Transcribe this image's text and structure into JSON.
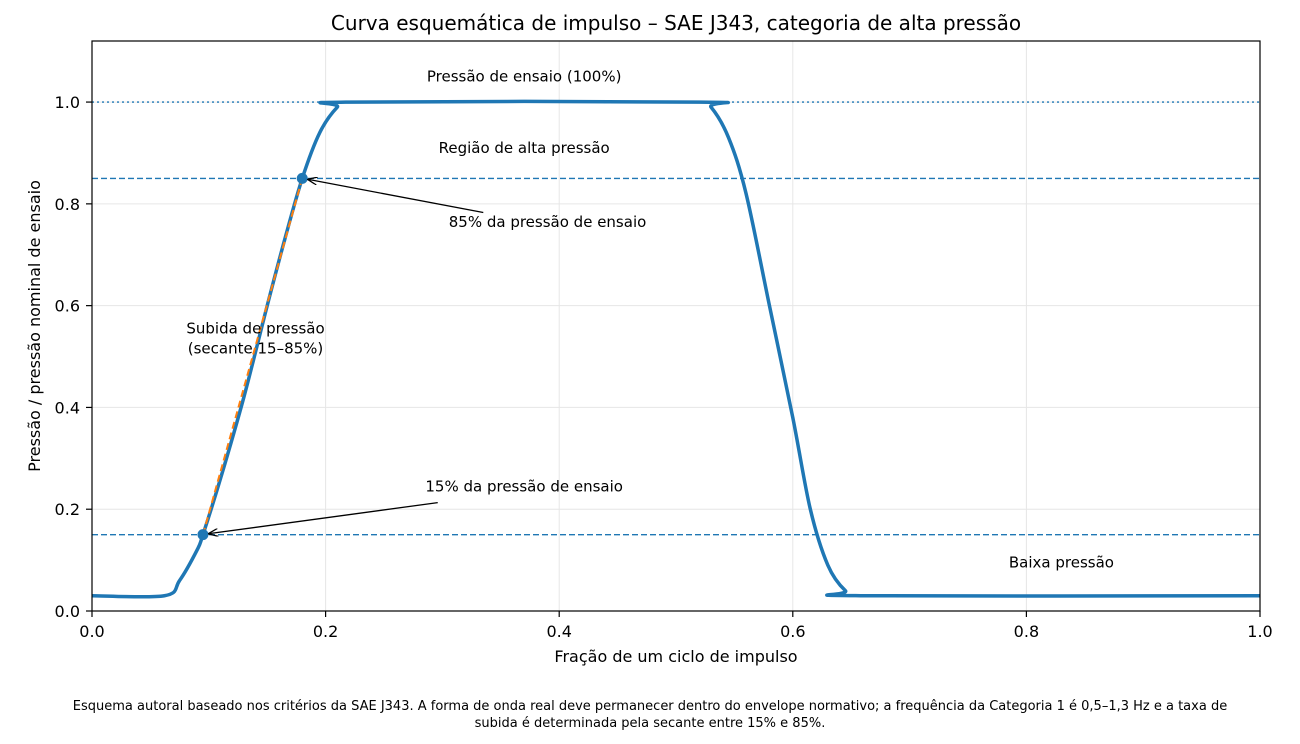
{
  "chart_data": {
    "type": "line",
    "title": "Curva esquemática de impulso – SAE J343, categoria de alta pressão",
    "xlabel": "Fração de um ciclo de impulso",
    "ylabel": "Pressão / pressão nominal de ensaio",
    "xlim": [
      0,
      1
    ],
    "ylim": [
      0,
      1.12
    ],
    "x_ticks": [
      "0.0",
      "0.2",
      "0.4",
      "0.6",
      "0.8",
      "1.0"
    ],
    "y_ticks": [
      "0.0",
      "0.2",
      "0.4",
      "0.6",
      "0.8",
      "1.0"
    ],
    "grid": true,
    "series": [
      {
        "kind": "pressure-curve",
        "color": "#1f77b4",
        "x": [
          0.0,
          0.062,
          0.075,
          0.09,
          0.095,
          0.11,
          0.13,
          0.15,
          0.165,
          0.18,
          0.195,
          0.21,
          0.22,
          0.52,
          0.53,
          0.545,
          0.56,
          0.58,
          0.6,
          0.615,
          0.63,
          0.645,
          0.658,
          1.0
        ],
        "y": [
          0.03,
          0.03,
          0.06,
          0.12,
          0.15,
          0.26,
          0.42,
          0.6,
          0.73,
          0.85,
          0.94,
          0.99,
          1.0,
          1.0,
          0.99,
          0.93,
          0.82,
          0.6,
          0.38,
          0.2,
          0.09,
          0.04,
          0.03,
          0.03
        ]
      },
      {
        "kind": "secant-line",
        "color": "#ff7f0e",
        "x": [
          0.095,
          0.18
        ],
        "y": [
          0.15,
          0.85
        ]
      }
    ],
    "reference_lines": [
      {
        "y": 1.0,
        "style": "dotted",
        "color": "#1f77b4"
      },
      {
        "y": 0.85,
        "style": "dashed",
        "color": "#1f77b4"
      },
      {
        "y": 0.15,
        "style": "dashed",
        "color": "#1f77b4"
      }
    ],
    "markers": [
      {
        "x": 0.095,
        "y": 0.15,
        "color": "#1f77b4"
      },
      {
        "x": 0.18,
        "y": 0.85,
        "color": "#1f77b4"
      }
    ],
    "annotations": {
      "test_pressure": {
        "text": "Pressão de ensaio (100%)",
        "x": 0.37,
        "y": 1.04
      },
      "high_region": {
        "text": "Região de alta pressão",
        "x": 0.37,
        "y": 0.9
      },
      "p85": {
        "text": "85% da pressão de ensaio",
        "x": 0.39,
        "y": 0.755,
        "arrow_to": [
          0.18,
          0.85
        ]
      },
      "rise": {
        "lines": [
          "Subida de pressão",
          "(secante 15–85%)"
        ],
        "x": 0.14,
        "y": 0.545
      },
      "p15": {
        "text": "15% da pressão de ensaio",
        "x": 0.37,
        "y": 0.235,
        "arrow_to": [
          0.095,
          0.15
        ]
      },
      "low": {
        "text": "Baixa pressão",
        "x": 0.83,
        "y": 0.085
      }
    },
    "caption_lines": [
      "Esquema autoral baseado nos critérios da SAE J343. A forma de onda real deve permanecer dentro do envelope normativo; a frequência da Categoria 1 é 0,5–1,3 Hz e a taxa de",
      "subida é determinada pela secante entre 15% e 85%."
    ]
  }
}
